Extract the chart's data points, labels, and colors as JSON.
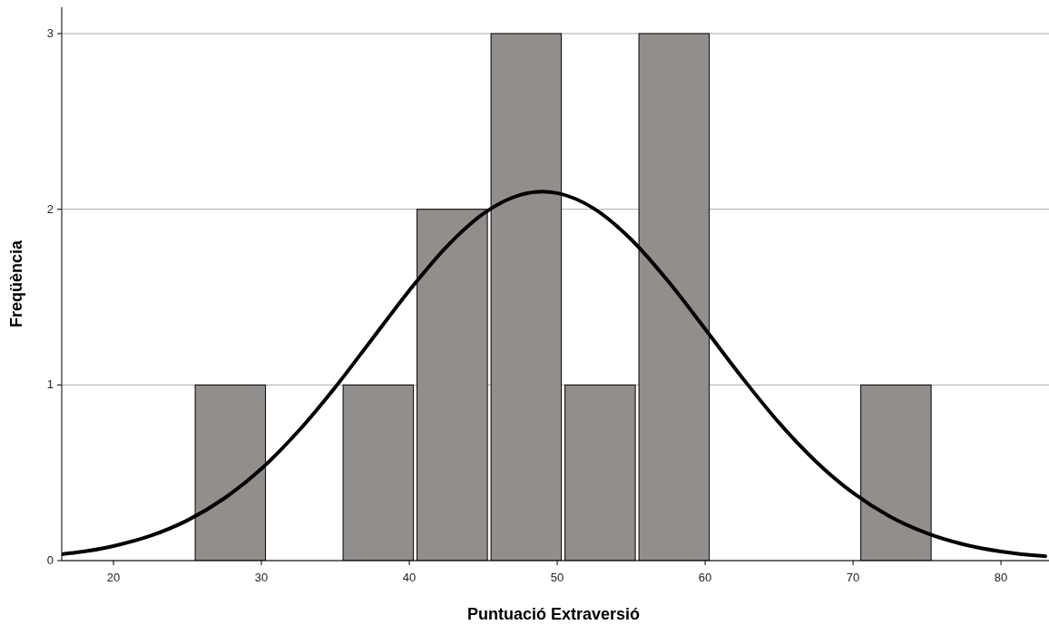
{
  "chart_data": {
    "type": "histogram",
    "xlabel": "Puntuació Extraversió",
    "ylabel": "Freqüència",
    "xlim": [
      16.5,
      83
    ],
    "ylim": [
      0,
      3.15
    ],
    "xticks": [
      20,
      30,
      40,
      50,
      60,
      70,
      80
    ],
    "yticks": [
      0,
      1,
      2,
      3
    ],
    "grid": "y",
    "series": [
      {
        "color": "#928e8c",
        "bins": [
          25.4,
          30.4,
          35.4,
          40.4,
          45.4,
          50.4,
          55.4,
          60.4,
          65.4,
          70.4,
          75.4
        ],
        "values": [
          1,
          0,
          1,
          2,
          3,
          1,
          3,
          0,
          0,
          1
        ]
      },
      {
        "type": "line",
        "color": "#000000",
        "x": [
          16.5,
          17.5,
          20,
          22.5,
          25,
          27.5,
          30,
          32.5,
          35,
          37.5,
          40,
          42.5,
          45,
          47.5,
          49,
          50,
          52.5,
          55,
          57.5,
          60,
          62.5,
          65,
          67.5,
          70,
          72.5,
          75,
          77.5,
          80,
          82.5,
          83
        ],
        "values": [
          0.036,
          0.046,
          0.083,
          0.141,
          0.229,
          0.355,
          0.523,
          0.737,
          0.988,
          1.263,
          1.538,
          1.785,
          1.975,
          2.082,
          2.1,
          2.092,
          2.003,
          1.828,
          1.59,
          1.318,
          1.042,
          0.784,
          0.563,
          0.385,
          0.251,
          0.156,
          0.092,
          0.052,
          0.028,
          0.025
        ]
      }
    ]
  }
}
